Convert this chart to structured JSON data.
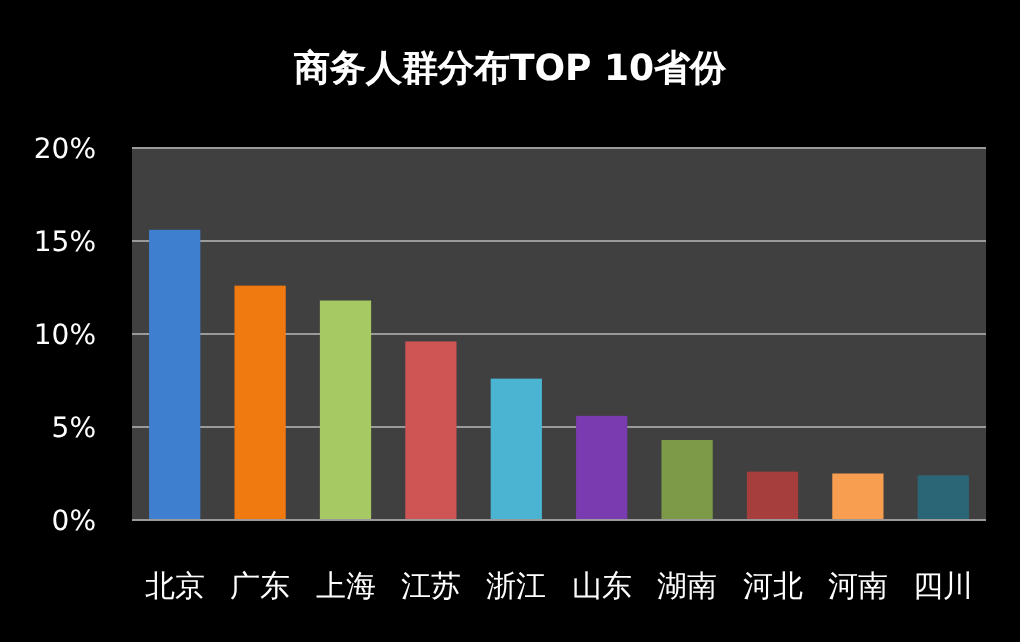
{
  "chart_data": {
    "type": "bar",
    "title": "商务人群分布TOP 10省份",
    "categories": [
      "北京",
      "广东",
      "上海",
      "江苏",
      "浙江",
      "山东",
      "湖南",
      "河北",
      "河南",
      "四川"
    ],
    "values": [
      15.6,
      12.6,
      11.8,
      9.6,
      7.6,
      5.6,
      4.3,
      2.6,
      2.5,
      2.4
    ],
    "colors": [
      "#3f7fd0",
      "#f07a10",
      "#a6c964",
      "#cf5454",
      "#4bb4d3",
      "#7b3bb0",
      "#7d9a48",
      "#a73e3e",
      "#f89e50",
      "#2a6676"
    ],
    "ylim": [
      0,
      20
    ],
    "yticks": [
      {
        "value": 0,
        "label": "0%"
      },
      {
        "value": 5,
        "label": "5%"
      },
      {
        "value": 10,
        "label": "10%"
      },
      {
        "value": 15,
        "label": "15%"
      },
      {
        "value": 20,
        "label": "20%"
      }
    ],
    "grid": "y"
  }
}
